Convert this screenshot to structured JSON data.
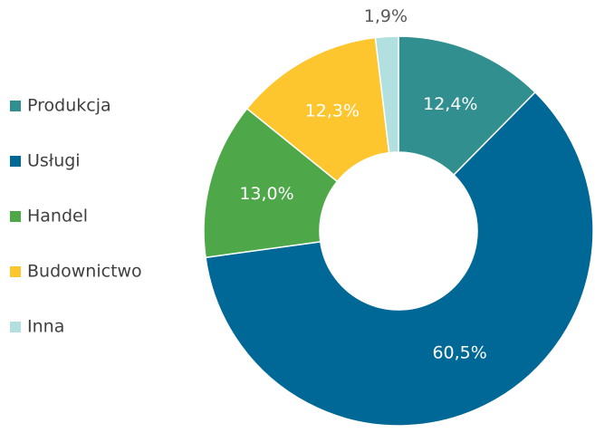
{
  "chart_data": {
    "type": "donut",
    "categories": [
      "Produkcja",
      "Usługi",
      "Handel",
      "Budownictwo",
      "Inna"
    ],
    "values": [
      12.4,
      60.5,
      13.0,
      12.3,
      1.9
    ],
    "value_labels": [
      "12,4%",
      "60,5%",
      "13,0%",
      "12,3%",
      "1,9%"
    ],
    "colors": [
      "#31908f",
      "#006896",
      "#4ea84a",
      "#fec62e",
      "#b2e0e0"
    ],
    "legend": "left"
  }
}
